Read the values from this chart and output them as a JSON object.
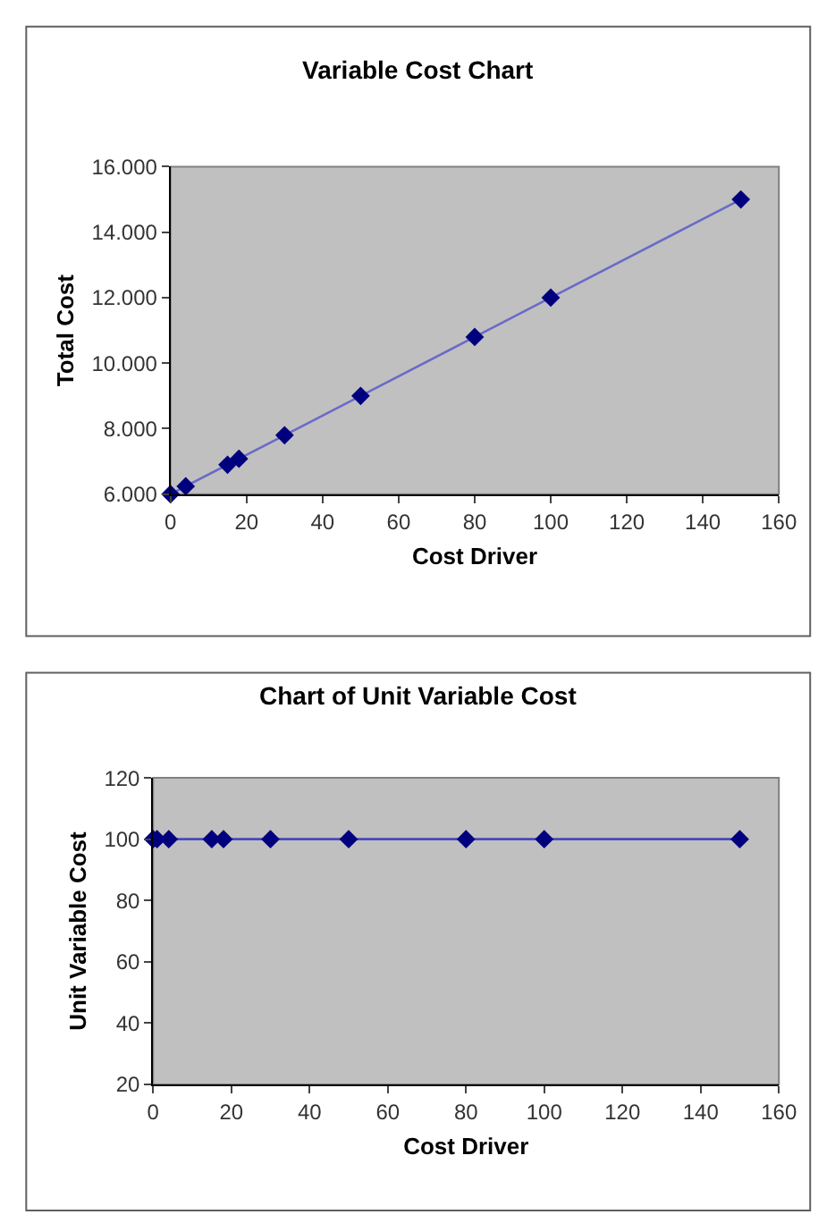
{
  "chart_data": [
    {
      "type": "line",
      "title": "Variable Cost Chart",
      "xlabel": "Cost Driver",
      "ylabel": "Total Cost",
      "x": [
        0,
        4,
        15,
        18,
        30,
        50,
        80,
        100,
        150
      ],
      "marker": "diamond",
      "line_style": "solid",
      "series": [
        {
          "color": "#6a6ac8",
          "values": [
            6000,
            6240,
            6900,
            7080,
            7800,
            9000,
            10800,
            12000,
            15000
          ]
        }
      ],
      "xlim": [
        0,
        160
      ],
      "xticks": [
        0,
        20,
        40,
        60,
        80,
        100,
        120,
        140,
        160
      ],
      "ylim": [
        6000,
        16000
      ],
      "yticks": [
        {
          "value": 6000,
          "label": "6.000"
        },
        {
          "value": 8000,
          "label": "8.000"
        },
        {
          "value": 10000,
          "label": "10.000"
        },
        {
          "value": 12000,
          "label": "12.000"
        },
        {
          "value": 14000,
          "label": "14.000"
        },
        {
          "value": 16000,
          "label": "16.000"
        }
      ],
      "grid": false
    },
    {
      "type": "line",
      "title": "Chart of Unit Variable Cost",
      "xlabel": "Cost Driver",
      "ylabel": "Unit Variable Cost",
      "x": [
        0,
        1,
        4,
        15,
        18,
        30,
        50,
        80,
        100,
        150
      ],
      "marker": "diamond",
      "line_style": "solid",
      "series": [
        {
          "color": "#4848c0",
          "values": [
            100,
            100,
            100,
            100,
            100,
            100,
            100,
            100,
            100,
            100
          ]
        }
      ],
      "xlim": [
        0,
        160
      ],
      "xticks": [
        0,
        20,
        40,
        60,
        80,
        100,
        120,
        140,
        160
      ],
      "ylim": [
        20,
        120
      ],
      "yticks": [
        20,
        40,
        60,
        80,
        100,
        120
      ],
      "grid": false
    }
  ]
}
